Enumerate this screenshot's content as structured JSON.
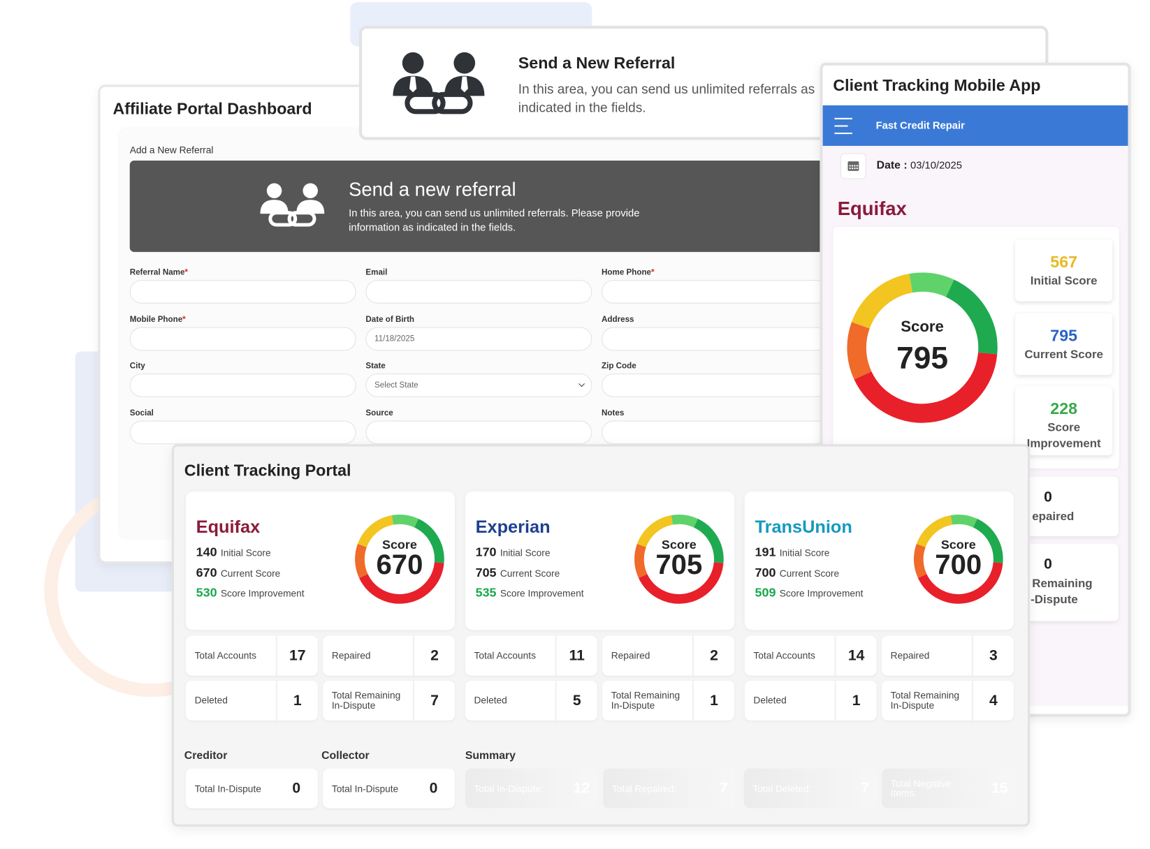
{
  "affiliate": {
    "title": "Affiliate Portal Dashboard",
    "section": "Add a New Referral",
    "banner_title": "Send a new referral",
    "banner_text": "In this area, you can send us unlimited referrals. Please provide information as indicated in the fields.",
    "required_mark": "*",
    "fields": [
      {
        "label": "Referral Name",
        "required": true
      },
      {
        "label": "Email"
      },
      {
        "label": "Home Phone",
        "required": true
      },
      {
        "label": "Mobile Phone",
        "required": true
      },
      {
        "label": "Date of Birth",
        "value": "11/18/2025"
      },
      {
        "label": "Address"
      },
      {
        "label": "City"
      },
      {
        "label": "State",
        "value": "Select State"
      },
      {
        "label": "Zip Code"
      },
      {
        "label": "Social"
      },
      {
        "label": "Source"
      },
      {
        "label": "Notes"
      }
    ]
  },
  "referral_card": {
    "title": "Send a New Referral",
    "text": "In this area, you can send us unlimited referrals as indicated in the fields."
  },
  "mobile": {
    "title": "Client Tracking Mobile App",
    "app_name": "Fast Credit Repair",
    "date_label": "Date :",
    "date": "03/10/2025",
    "bureau": "Equifax",
    "gauge_label": "Score",
    "score": 795,
    "stats": [
      {
        "value": 567,
        "label": "Initial Score",
        "color": "#e8b923"
      },
      {
        "value": 795,
        "label": "Current Score",
        "color": "#2a63c8"
      },
      {
        "value": 228,
        "label": "Score Improvement",
        "color": "#3aa84a"
      }
    ],
    "partial": [
      {
        "value": 0,
        "lines": [
          "epaired"
        ]
      },
      {
        "value": 0,
        "lines": [
          "Remaining",
          "-Dispute"
        ]
      }
    ]
  },
  "portal": {
    "title": "Client Tracking Portal",
    "gauge_label": "Score",
    "initial_label": "Initial Score",
    "current_label": "Current Score",
    "improvement_label": "Score Improvement",
    "stat_labels": [
      "Total Accounts",
      "Repaired",
      "Deleted",
      "Total Remaining In-Dispute"
    ],
    "bureaus": [
      {
        "name": "Equifax",
        "color": "#8b1a3a",
        "initial": 140,
        "current": 670,
        "improvement": 530,
        "score": 670,
        "stats": [
          17,
          2,
          1,
          7
        ]
      },
      {
        "name": "Experian",
        "color": "#1f3f8f",
        "initial": 170,
        "current": 705,
        "improvement": 535,
        "score": 705,
        "stats": [
          11,
          2,
          5,
          1
        ]
      },
      {
        "name": "TransUnion",
        "color": "#1599c0",
        "initial": 191,
        "current": 700,
        "improvement": 509,
        "score": 700,
        "stats": [
          14,
          3,
          1,
          4
        ]
      }
    ],
    "creditor": {
      "title": "Creditor",
      "label": "Total In-Dispute",
      "value": 0
    },
    "collector": {
      "title": "Collector",
      "label": "Total In-Dispute",
      "value": 0
    },
    "summary": {
      "title": "Summary",
      "items": [
        {
          "label": "Total In-Dispute:",
          "value": 12,
          "color": "#f26b2a"
        },
        {
          "label": "Total Repaired:",
          "value": 7,
          "color": "#4a8be0"
        },
        {
          "label": "Total Deleted:",
          "value": 7,
          "color": "#16a04a"
        },
        {
          "label": "Total Negative Items:",
          "value": 15,
          "color": "#e8283a"
        }
      ]
    }
  }
}
